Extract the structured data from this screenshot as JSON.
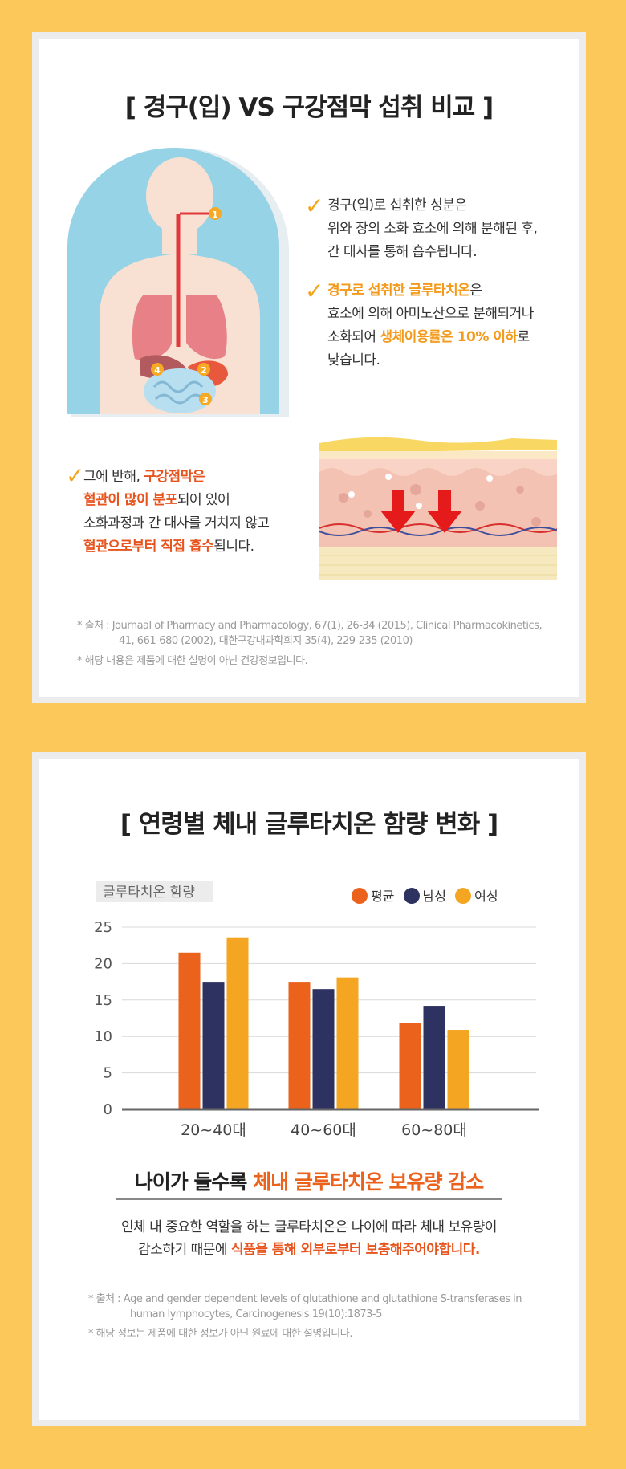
{
  "section1": {
    "title": "[ 경구(입) VS 구강점막 섭취 비교 ]",
    "organ_markers": [
      "1",
      "2",
      "3",
      "4"
    ],
    "point1": {
      "line1": "경구(입)로 섭취한 성분은",
      "line2": "위와 장의 소화 효소에 의해 분해된 후,",
      "line3": "간 대사를 통해 흡수됩니다."
    },
    "point2": {
      "l1_highlight": "경구로 섭취한 글루타치온",
      "l1_rest": "은",
      "l2": "효소에 의해 아미노산으로 분해되거나",
      "l3_pre": "소화되어 ",
      "l3_highlight": "생체이용률은 10% 이하",
      "l3_post": "로",
      "l4": "낮습니다."
    },
    "point3": {
      "l1_pre": "그에 반해, ",
      "l1_highlight": "구강점막은",
      "l2_highlight": "혈관이 많이 분포",
      "l2_rest": "되어 있어",
      "l3": "소화과정과 간 대사를 거치지 않고",
      "l4_highlight": "혈관으로부터 직접 흡수",
      "l4_rest": "됩니다."
    },
    "ref1": "* 출처 : Journaal of Pharmacy and Pharmacology, 67(1), 26-34 (2015), Clinical Pharmacokinetics,",
    "ref2": "41, 661-680 (2002),  대한구강내과학회지 35(4), 229-235 (2010)",
    "ref3": "* 해당 내용은 제품에 대한 설명이 아닌 건강정보입니다."
  },
  "section2": {
    "title": "[ 연령별 체내 글루타치온 함량 변화 ]",
    "headline_pre": "나이가 들수록 ",
    "headline_highlight": "체내 글루타치온 보유량 감소",
    "desc1": "인체 내 중요한 역할을 하는 글루타치온은 나이에 따라 체내 보유량이",
    "desc2_pre": "감소하기 때문에 ",
    "desc2_highlight": "식품을 통해 외부로부터 보충해주어야합니다.",
    "ref1": "* 출처 : Age and gender dependent levels of glutathione and glutathione S-transferases in",
    "ref2": "human lymphocytes, Carcinogenesis 19(10):1873-5",
    "ref3": "* 해당 정보는 제품에 대한 정보가 아닌 원료에 대한 설명입니다."
  },
  "colors": {
    "average": "#ea621b",
    "male": "#2e3260",
    "female": "#f4a622"
  },
  "chart_data": {
    "type": "bar",
    "ylabel": "글루타치온 함량",
    "categories": [
      "20~40대",
      "40~60대",
      "60~80대"
    ],
    "series": [
      {
        "name": "평균",
        "values": [
          21.5,
          17.5,
          11.8
        ]
      },
      {
        "name": "남성",
        "values": [
          17.5,
          16.5,
          14.2
        ]
      },
      {
        "name": "여성",
        "values": [
          23.6,
          18.1,
          10.9
        ]
      }
    ],
    "ylim": [
      0,
      25
    ],
    "yticks": [
      "0",
      "5",
      "10",
      "15",
      "20",
      "25"
    ],
    "grid": true,
    "legend": "top-right"
  }
}
